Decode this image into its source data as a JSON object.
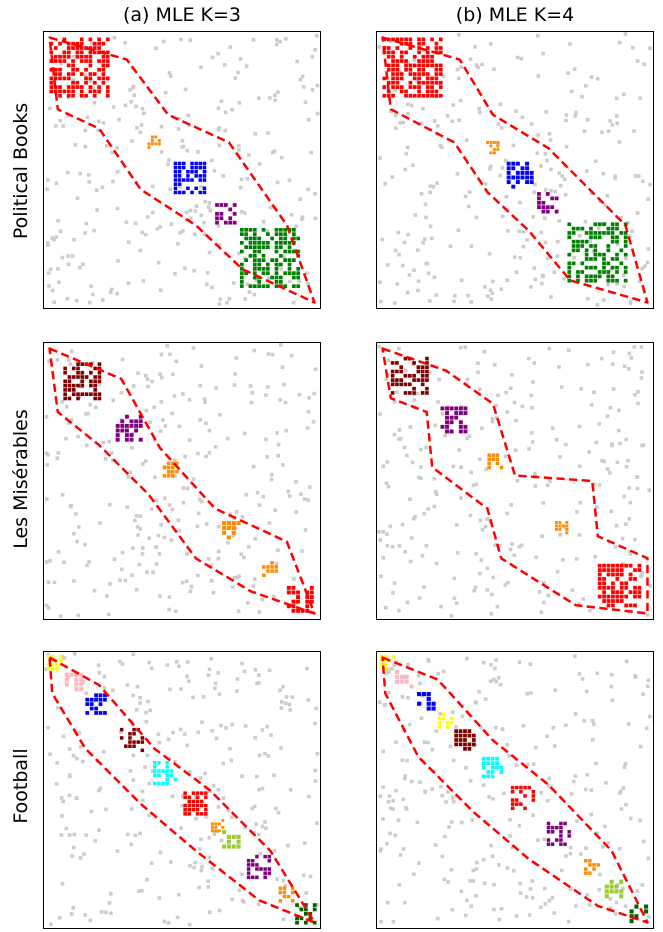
{
  "columns": [
    "(a) MLE K=3",
    "(b) MLE K=4"
  ],
  "rows": [
    {
      "label": "Political Books",
      "panels": [
        {
          "blocks": [
            {
              "color": "#ff0000",
              "center": 0.13,
              "size": 0.22
            },
            {
              "color": "#ff8c00",
              "center": 0.4,
              "size": 0.05
            },
            {
              "color": "#0000ff",
              "center": 0.53,
              "size": 0.12
            },
            {
              "color": "#800080",
              "center": 0.66,
              "size": 0.08
            },
            {
              "color": "#008000",
              "center": 0.82,
              "size": 0.22
            }
          ],
          "outline": [
            [
              0.02,
              0.02
            ],
            [
              0.3,
              0.1
            ],
            [
              0.45,
              0.3
            ],
            [
              0.67,
              0.4
            ],
            [
              0.88,
              0.7
            ],
            [
              0.98,
              0.98
            ],
            [
              0.72,
              0.86
            ],
            [
              0.55,
              0.7
            ],
            [
              0.35,
              0.57
            ],
            [
              0.2,
              0.35
            ],
            [
              0.05,
              0.28
            ]
          ]
        },
        {
          "blocks": [
            {
              "color": "#ff0000",
              "center": 0.13,
              "size": 0.22
            },
            {
              "color": "#ff8c00",
              "center": 0.42,
              "size": 0.05
            },
            {
              "color": "#0000ff",
              "center": 0.52,
              "size": 0.1
            },
            {
              "color": "#800080",
              "center": 0.62,
              "size": 0.08
            },
            {
              "color": "#008000",
              "center": 0.8,
              "size": 0.22
            }
          ],
          "outline": [
            [
              0.02,
              0.02
            ],
            [
              0.3,
              0.1
            ],
            [
              0.42,
              0.3
            ],
            [
              0.62,
              0.42
            ],
            [
              0.9,
              0.7
            ],
            [
              0.98,
              0.98
            ],
            [
              0.7,
              0.9
            ],
            [
              0.55,
              0.72
            ],
            [
              0.4,
              0.58
            ],
            [
              0.28,
              0.4
            ],
            [
              0.05,
              0.28
            ]
          ]
        }
      ]
    },
    {
      "label": "Les Misérables",
      "panels": [
        {
          "blocks": [
            {
              "color": "#800000",
              "center": 0.14,
              "size": 0.14
            },
            {
              "color": "#800080",
              "center": 0.31,
              "size": 0.1
            },
            {
              "color": "#ff8c00",
              "center": 0.46,
              "size": 0.06
            },
            {
              "color": "#ff8c00",
              "center": 0.68,
              "size": 0.07
            },
            {
              "color": "#ff8c00",
              "center": 0.82,
              "size": 0.06
            },
            {
              "color": "#ff0000",
              "center": 0.93,
              "size": 0.1
            }
          ],
          "outline": [
            [
              0.02,
              0.02
            ],
            [
              0.28,
              0.13
            ],
            [
              0.42,
              0.38
            ],
            [
              0.62,
              0.6
            ],
            [
              0.88,
              0.72
            ],
            [
              0.98,
              0.98
            ],
            [
              0.75,
              0.9
            ],
            [
              0.55,
              0.78
            ],
            [
              0.38,
              0.55
            ],
            [
              0.2,
              0.37
            ],
            [
              0.05,
              0.25
            ]
          ]
        },
        {
          "blocks": [
            {
              "color": "#800000",
              "center": 0.12,
              "size": 0.14
            },
            {
              "color": "#800080",
              "center": 0.28,
              "size": 0.1
            },
            {
              "color": "#ff8c00",
              "center": 0.43,
              "size": 0.06
            },
            {
              "color": "#ff8c00",
              "center": 0.67,
              "size": 0.05
            },
            {
              "color": "#ff0000",
              "center": 0.88,
              "size": 0.16
            }
          ],
          "outline": [
            [
              0.02,
              0.02
            ],
            [
              0.25,
              0.1
            ],
            [
              0.42,
              0.22
            ],
            [
              0.5,
              0.48
            ],
            [
              0.78,
              0.5
            ],
            [
              0.8,
              0.7
            ],
            [
              0.98,
              0.78
            ],
            [
              0.98,
              0.98
            ],
            [
              0.72,
              0.95
            ],
            [
              0.45,
              0.78
            ],
            [
              0.4,
              0.6
            ],
            [
              0.2,
              0.45
            ],
            [
              0.18,
              0.25
            ],
            [
              0.05,
              0.2
            ]
          ]
        }
      ]
    },
    {
      "label": "Football",
      "panels": [
        {
          "blocks": [
            {
              "color": "#ffff00",
              "center": 0.04,
              "size": 0.06
            },
            {
              "color": "#ffb6c1",
              "center": 0.11,
              "size": 0.07
            },
            {
              "color": "#0000ff",
              "center": 0.19,
              "size": 0.08
            },
            {
              "color": "#800000",
              "center": 0.32,
              "size": 0.09
            },
            {
              "color": "#00ffff",
              "center": 0.44,
              "size": 0.09
            },
            {
              "color": "#ff0000",
              "center": 0.55,
              "size": 0.09
            },
            {
              "color": "#ff8c00",
              "center": 0.63,
              "size": 0.05
            },
            {
              "color": "#9acd32",
              "center": 0.68,
              "size": 0.07
            },
            {
              "color": "#800080",
              "center": 0.78,
              "size": 0.09
            },
            {
              "color": "#ff8c00",
              "center": 0.88,
              "size": 0.06
            },
            {
              "color": "#006400",
              "center": 0.95,
              "size": 0.08
            }
          ],
          "outline": [
            [
              0.02,
              0.02
            ],
            [
              0.2,
              0.12
            ],
            [
              0.4,
              0.35
            ],
            [
              0.6,
              0.5
            ],
            [
              0.82,
              0.72
            ],
            [
              0.98,
              0.98
            ],
            [
              0.78,
              0.9
            ],
            [
              0.55,
              0.72
            ],
            [
              0.35,
              0.55
            ],
            [
              0.15,
              0.35
            ],
            [
              0.03,
              0.15
            ]
          ]
        },
        {
          "blocks": [
            {
              "color": "#ffff00",
              "center": 0.04,
              "size": 0.06
            },
            {
              "color": "#ffb6c1",
              "center": 0.1,
              "size": 0.07
            },
            {
              "color": "#0000ff",
              "center": 0.18,
              "size": 0.07
            },
            {
              "color": "#ffff00",
              "center": 0.25,
              "size": 0.06
            },
            {
              "color": "#800000",
              "center": 0.32,
              "size": 0.08
            },
            {
              "color": "#00ffff",
              "center": 0.42,
              "size": 0.08
            },
            {
              "color": "#ff0000",
              "center": 0.53,
              "size": 0.09
            },
            {
              "color": "#800080",
              "center": 0.66,
              "size": 0.09
            },
            {
              "color": "#ff8c00",
              "center": 0.78,
              "size": 0.06
            },
            {
              "color": "#9acd32",
              "center": 0.86,
              "size": 0.07
            },
            {
              "color": "#006400",
              "center": 0.95,
              "size": 0.07
            }
          ],
          "outline": [
            [
              0.02,
              0.02
            ],
            [
              0.22,
              0.1
            ],
            [
              0.42,
              0.32
            ],
            [
              0.62,
              0.48
            ],
            [
              0.85,
              0.72
            ],
            [
              0.98,
              0.98
            ],
            [
              0.8,
              0.92
            ],
            [
              0.55,
              0.75
            ],
            [
              0.35,
              0.58
            ],
            [
              0.15,
              0.38
            ],
            [
              0.03,
              0.15
            ]
          ]
        }
      ]
    }
  ],
  "noise_color": "#cccccc",
  "outline_color": "#ff0000"
}
